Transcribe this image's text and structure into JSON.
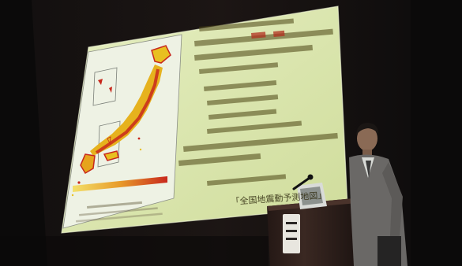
{
  "slide": {
    "text_lines": [
      "「全国地震動予測地図」",
      "",
      "",
      "",
      "",
      "",
      "",
      "",
      "",
      ""
    ],
    "footer_line": ""
  },
  "colors": {
    "slide_bg": "#d9e7b0",
    "map_red": "#c8281c",
    "map_yellow": "#e8c020",
    "suit": "#6a6866"
  }
}
